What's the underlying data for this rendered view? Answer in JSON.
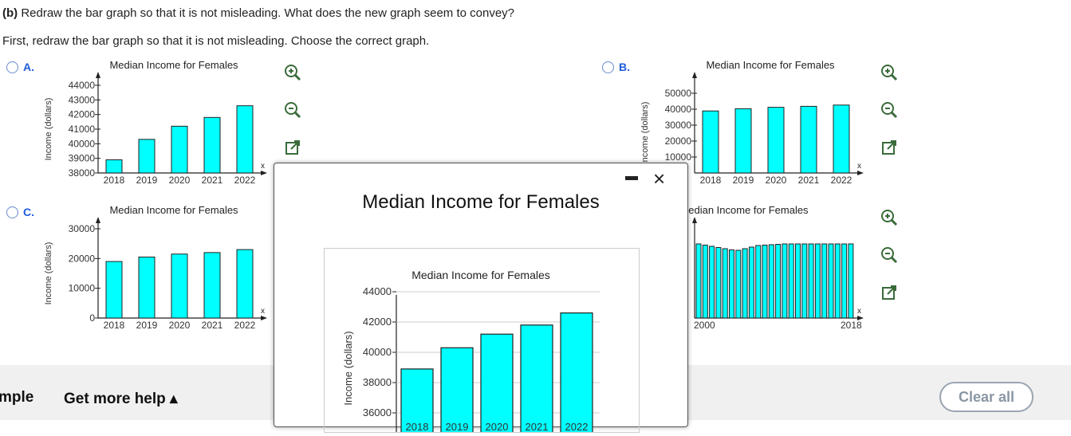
{
  "question": {
    "part": "(b)",
    "text": "Redraw the bar graph so that it is not misleading. What does the new graph seem to convey?",
    "instruction": "First, redraw the bar graph so that it is not misleading. Choose the correct graph."
  },
  "options": {
    "a": {
      "label": "A.",
      "chart_title": "Median Income for Females",
      "ylabel": "Income (dollars)",
      "xlabel": "x",
      "categories": [
        "2018",
        "2019",
        "2020",
        "2021",
        "2022"
      ],
      "values": [
        38900,
        40300,
        41200,
        41800,
        42600
      ],
      "ylim": [
        38000,
        44000
      ],
      "yticks": [
        "44000",
        "43000",
        "42000",
        "41000",
        "40000",
        "39000",
        "38000"
      ]
    },
    "b": {
      "label": "B.",
      "chart_title": "Median Income for Females",
      "ylabel": "Income (dollars)",
      "xlabel": "x",
      "categories": [
        "2018",
        "2019",
        "2020",
        "2021",
        "2022"
      ],
      "values": [
        38900,
        40300,
        41200,
        41800,
        42600
      ],
      "ylim": [
        0,
        50000
      ],
      "yticks": [
        "50000",
        "40000",
        "30000",
        "20000",
        "10000"
      ]
    },
    "c": {
      "label": "C.",
      "chart_title": "Median Income for Females",
      "ylabel": "Income (dollars)",
      "xlabel": "x",
      "categories": [
        "2018",
        "2019",
        "2020",
        "2021",
        "2022"
      ],
      "values": [
        19000,
        20500,
        21500,
        22000,
        23000
      ],
      "ylim": [
        0,
        30000
      ],
      "yticks": [
        "30000",
        "20000",
        "10000",
        "0"
      ]
    },
    "d": {
      "chart_title": "Median Income for Females",
      "xlabel": "x",
      "x_start": "2000",
      "x_end": "2018"
    }
  },
  "popup": {
    "title": "Median Income for Females",
    "close": "×"
  },
  "chart_data": {
    "type": "bar",
    "title": "Median Income for Females",
    "xlabel": "",
    "ylabel": "Income (dollars)",
    "categories": [
      "2018",
      "2019",
      "2020",
      "2021",
      "2022"
    ],
    "values": [
      38900,
      40300,
      41200,
      41800,
      42600
    ],
    "ylim": [
      35000,
      45000
    ],
    "yticks": [
      "44000",
      "42000",
      "40000",
      "38000",
      "36000"
    ]
  },
  "footer": {
    "sample": "mple",
    "help": "Get more help ▴",
    "clear": "Clear all"
  },
  "colors": {
    "bar": "#00ffff",
    "accent": "#1f5bd8"
  }
}
